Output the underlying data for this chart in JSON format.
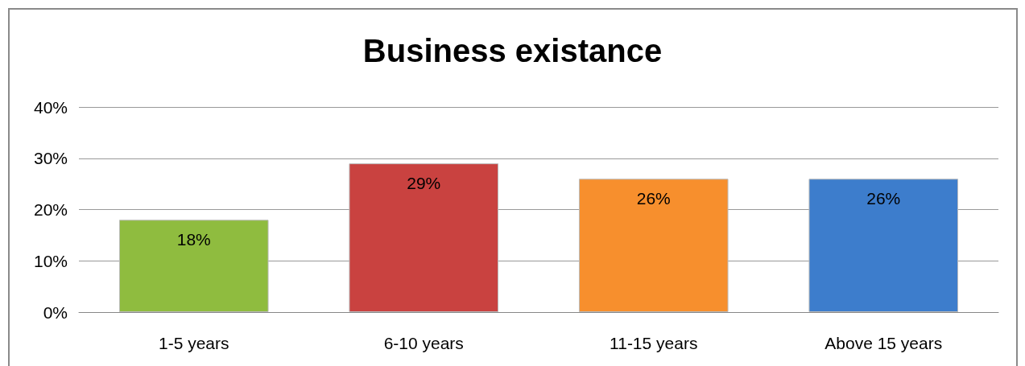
{
  "chart_data": {
    "type": "bar",
    "title": "Business existance",
    "categories": [
      "1-5 years",
      "6-10 years",
      "11-15 years",
      "Above 15 years"
    ],
    "values": [
      18,
      29,
      26,
      26
    ],
    "value_labels": [
      "18%",
      "29%",
      "26%",
      "26%"
    ],
    "colors": [
      "#8fbc3f",
      "#c94240",
      "#f78f2d",
      "#3d7dcc"
    ],
    "ylim": [
      0,
      40
    ],
    "yticks": [
      {
        "value": 0,
        "label": "0%"
      },
      {
        "value": 10,
        "label": "10%"
      },
      {
        "value": 20,
        "label": "20%"
      },
      {
        "value": 30,
        "label": "30%"
      },
      {
        "value": 40,
        "label": "40%"
      }
    ],
    "grid": "y"
  }
}
